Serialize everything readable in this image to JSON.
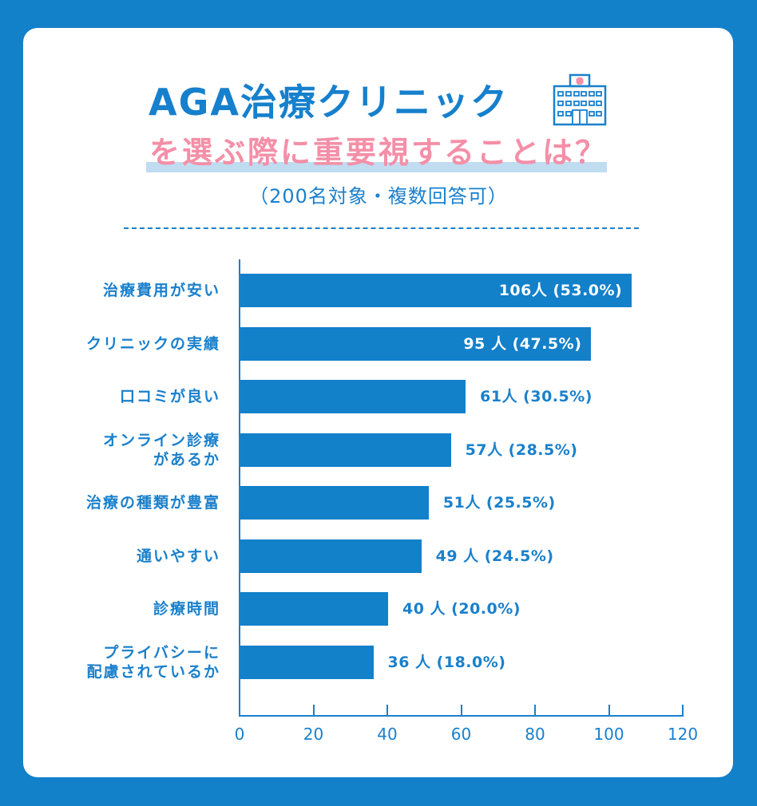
{
  "header": {
    "title": "AGA治療クリニック",
    "subtitle": "を選ぶ際に重要視することは？",
    "note": "（200名対象・複数回答可）",
    "icon": "hospital-icon"
  },
  "colors": {
    "background": "#1380ca",
    "card": "#ffffff",
    "bar": "#1380ca",
    "title": "#1680cc",
    "subtitle": "#f48fa7",
    "highlight": "#c0dcf1"
  },
  "axis": {
    "ticks": [
      "0",
      "20",
      "40",
      "60",
      "80",
      "100",
      "120"
    ]
  },
  "bars": [
    {
      "label_line1": "治療費用が安い",
      "label_line2": "",
      "value": 106,
      "value_label": "106人 (53.0%)"
    },
    {
      "label_line1": "クリニックの実績",
      "label_line2": "",
      "value": 95,
      "value_label": "95 人 (47.5%)"
    },
    {
      "label_line1": "口コミが良い",
      "label_line2": "",
      "value": 61,
      "value_label": "61人 (30.5%)"
    },
    {
      "label_line1": "オンライン診療",
      "label_line2": "があるか",
      "value": 57,
      "value_label": "57人 (28.5%)"
    },
    {
      "label_line1": "治療の種類が豊富",
      "label_line2": "",
      "value": 51,
      "value_label": "51人 (25.5%)"
    },
    {
      "label_line1": "通いやすい",
      "label_line2": "",
      "value": 49,
      "value_label": "49 人 (24.5%)"
    },
    {
      "label_line1": "診療時間",
      "label_line2": "",
      "value": 40,
      "value_label": "40 人 (20.0%)"
    },
    {
      "label_line1": "プライバシーに",
      "label_line2": "配慮されているか",
      "value": 36,
      "value_label": "36 人 (18.0%)"
    }
  ],
  "chart_data": {
    "type": "bar",
    "orientation": "horizontal",
    "title": "AGA治療クリニックを選ぶ際に重要視することは？",
    "subtitle": "（200名対象・複数回答可）",
    "categories": [
      "治療費用が安い",
      "クリニックの実績",
      "口コミが良い",
      "オンライン診療があるか",
      "治療の種類が豊富",
      "通いやすい",
      "診療時間",
      "プライバシーに配慮されているか"
    ],
    "values": [
      106,
      95,
      61,
      57,
      51,
      49,
      40,
      36
    ],
    "percentages": [
      53.0,
      47.5,
      30.5,
      28.5,
      25.5,
      24.5,
      20.0,
      18.0
    ],
    "data_labels": [
      "106人 (53.0%)",
      "95 人 (47.5%)",
      "61人 (30.5%)",
      "57人 (28.5%)",
      "51人 (25.5%)",
      "49 人 (24.5%)",
      "40 人 (20.0%)",
      "36 人 (18.0%)"
    ],
    "xlabel": "",
    "ylabel": "",
    "xlim": [
      0,
      120
    ],
    "xticks": [
      0,
      20,
      40,
      60,
      80,
      100,
      120
    ],
    "grid": false,
    "legend": null
  }
}
